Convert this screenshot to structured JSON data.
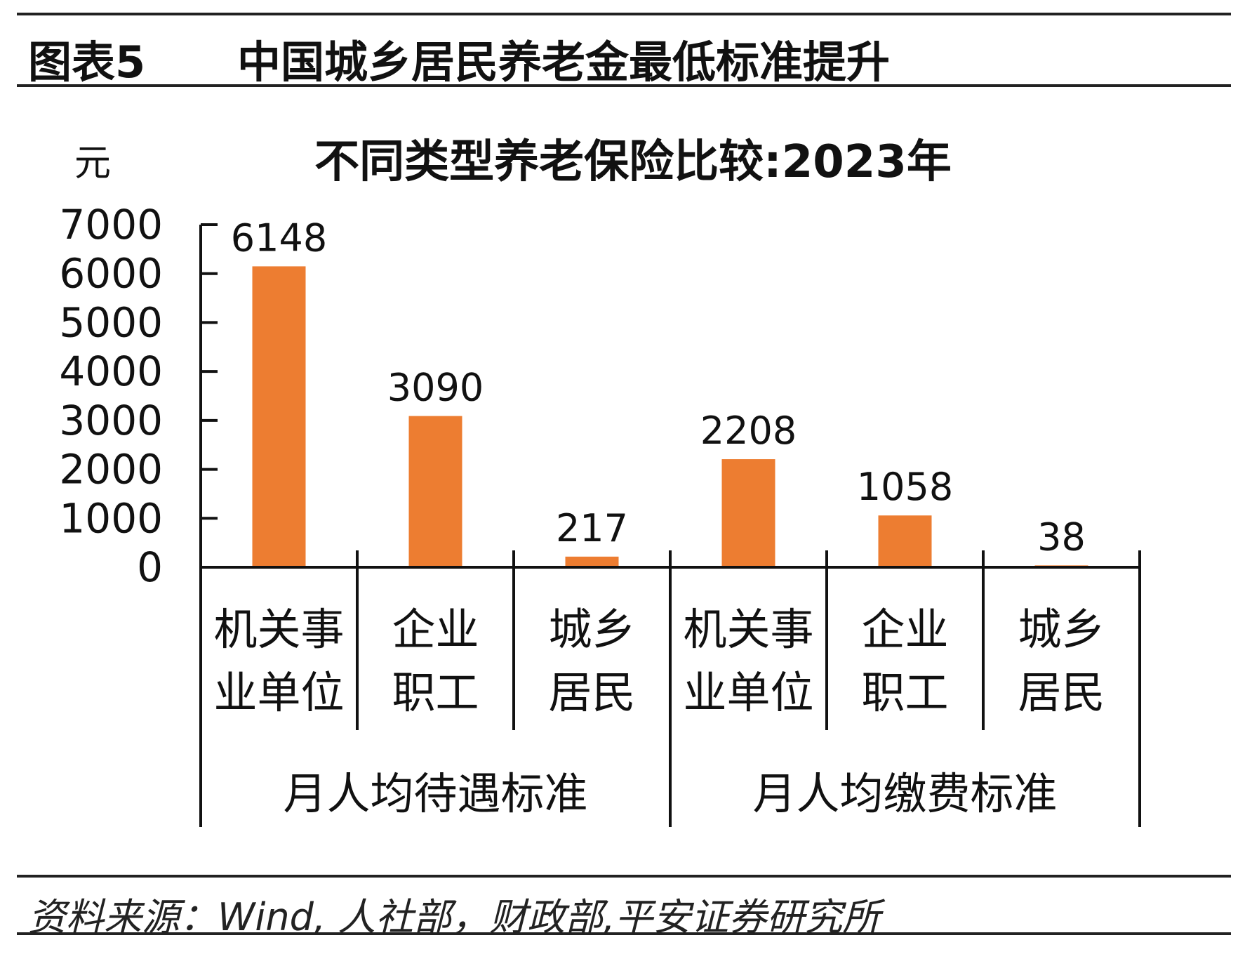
{
  "header": {
    "figure_label": "图表5",
    "figure_title": "中国城乡居民养老金最低标准提升"
  },
  "footer": {
    "source": "资料来源：Wind, 人社部，财政部,平安证券研究所"
  },
  "colors": {
    "bar": "#ED7D31",
    "axis": "#111111"
  },
  "chart_data": {
    "type": "bar",
    "title": "不同类型养老保险比较:2023年",
    "ylabel": "元",
    "ylim": [
      0,
      7000
    ],
    "yticks": [
      "0",
      "1000",
      "2000",
      "3000",
      "4000",
      "5000",
      "6000",
      "7000"
    ],
    "categories": [
      {
        "line1": "机关事",
        "line2": "业单位"
      },
      {
        "line1": "企业",
        "line2": "职工"
      },
      {
        "line1": "城乡",
        "line2": "居民"
      },
      {
        "line1": "机关事",
        "line2": "业单位"
      },
      {
        "line1": "企业",
        "line2": "职工"
      },
      {
        "line1": "城乡",
        "line2": "居民"
      }
    ],
    "groups": [
      {
        "label": "月人均待遇标准",
        "span": [
          0,
          2
        ]
      },
      {
        "label": "月人均缴费标准",
        "span": [
          3,
          5
        ]
      }
    ],
    "values": [
      6148,
      3090,
      217,
      2208,
      1058,
      38
    ],
    "data_labels": [
      "6148",
      "3090",
      "217",
      "2208",
      "1058",
      "38"
    ]
  }
}
